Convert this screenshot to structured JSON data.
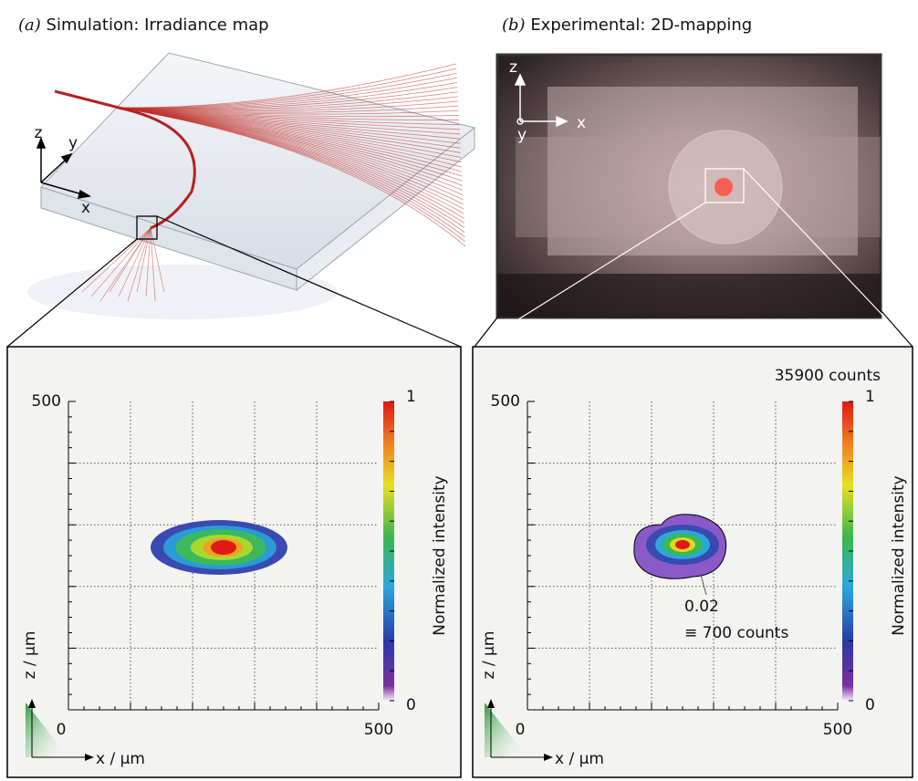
{
  "panels": [
    {
      "label": "(a)",
      "title": "Simulation: Irradiance map",
      "axes_3d": [
        "x",
        "y",
        "z"
      ],
      "plot": {
        "x_label": "x / µm",
        "y_label": "z / µm",
        "x_ticks": [
          0,
          500
        ],
        "y_ticks": [
          500
        ],
        "colorbar_label": "Normalized intensity",
        "colorbar_ticks": [
          0,
          1
        ]
      }
    },
    {
      "label": "(b)",
      "title": "Experimental: 2D-mapping",
      "axes_3d": [
        "x",
        "y",
        "z"
      ],
      "plot": {
        "x_label": "x / µm",
        "y_label": "z / µm",
        "x_ticks": [
          0,
          500
        ],
        "y_ticks": [
          500
        ],
        "colorbar_label": "Normalized intensity",
        "colorbar_ticks": [
          0,
          1
        ],
        "colorbar_max_note": "35900 counts",
        "contour_value": "0.02",
        "contour_counts": "≡ 700 counts"
      }
    }
  ]
}
